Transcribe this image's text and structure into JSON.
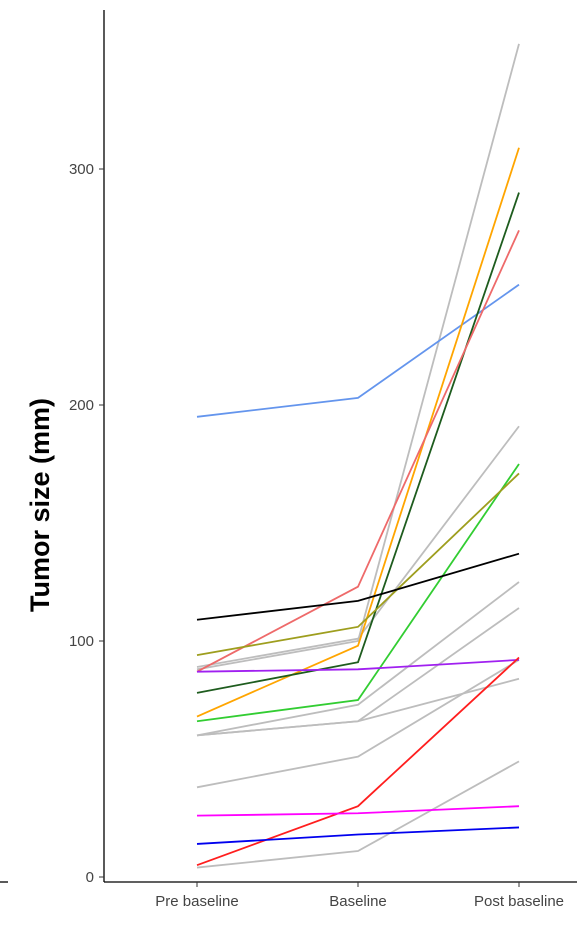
{
  "chart_data": {
    "type": "line",
    "ylabel": "Tumor size (mm)",
    "xlabel": "",
    "categories": [
      "Pre baseline",
      "Baseline",
      "Post baseline"
    ],
    "yticks": [
      0,
      100,
      200,
      300
    ],
    "ylim": [
      -2,
      353
    ],
    "grid": false,
    "legend": "none",
    "series": [
      {
        "color": "#bdbdbd",
        "values": [
          88,
          100,
          353
        ]
      },
      {
        "color": "#bdbdbd",
        "values": [
          89,
          101,
          191
        ]
      },
      {
        "color": "#bdbdbd",
        "values": [
          60,
          73,
          125
        ]
      },
      {
        "color": "#bdbdbd",
        "values": [
          60,
          66,
          114
        ]
      },
      {
        "color": "#bdbdbd",
        "values": [
          60,
          66,
          84
        ]
      },
      {
        "color": "#bdbdbd",
        "values": [
          38,
          51,
          92
        ]
      },
      {
        "color": "#bdbdbd",
        "values": [
          4,
          11,
          49
        ]
      },
      {
        "color": "#6495ed",
        "values": [
          195,
          203,
          251
        ]
      },
      {
        "color": "#ffa500",
        "values": [
          68,
          98,
          309
        ]
      },
      {
        "color": "#1e5c1e",
        "values": [
          78,
          91,
          290
        ]
      },
      {
        "color": "#ee6a6a",
        "values": [
          87,
          123,
          274
        ]
      },
      {
        "color": "#32cd32",
        "values": [
          66,
          75,
          175
        ]
      },
      {
        "color": "#9e9e1e",
        "values": [
          94,
          106,
          171
        ]
      },
      {
        "color": "#000000",
        "values": [
          109,
          117,
          137
        ]
      },
      {
        "color": "#a020f0",
        "values": [
          87,
          88,
          92
        ]
      },
      {
        "color": "#ff1e1e",
        "values": [
          5,
          30,
          93
        ]
      },
      {
        "color": "#ff00ff",
        "values": [
          26,
          27,
          30
        ]
      },
      {
        "color": "#0000ee",
        "values": [
          14,
          18,
          21
        ]
      }
    ]
  }
}
